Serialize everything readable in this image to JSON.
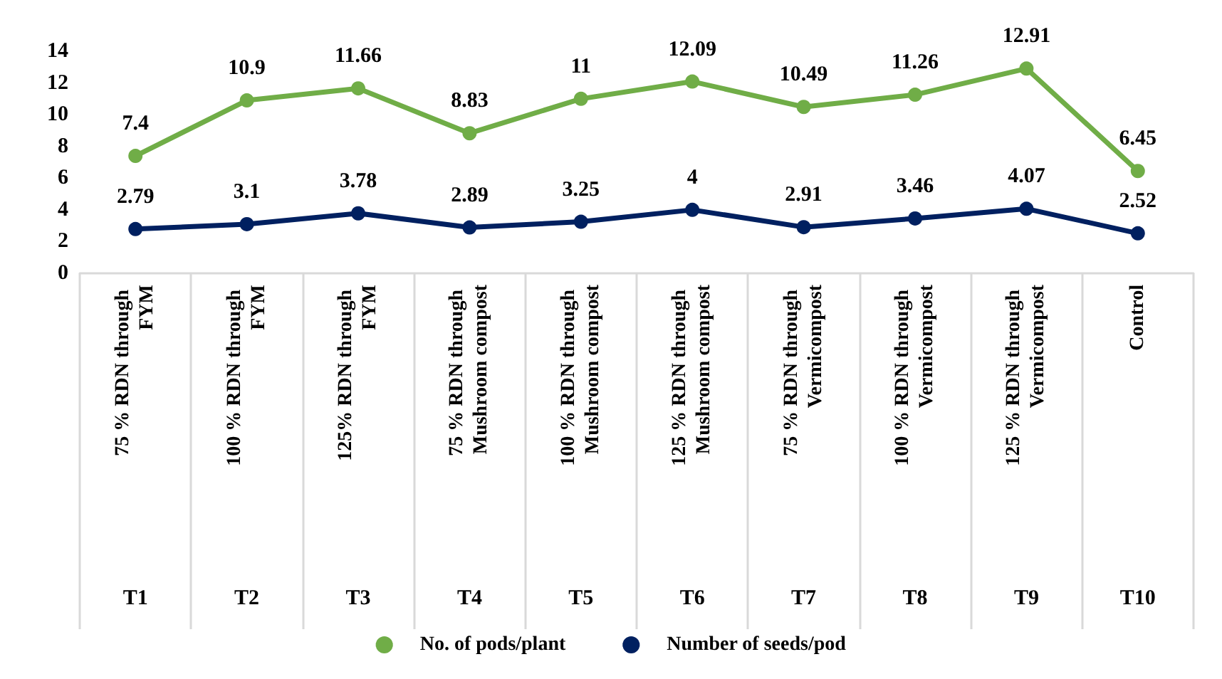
{
  "chart_data": {
    "type": "line",
    "categories": [
      "75 % RDN through FYM",
      "100 % RDN through FYM",
      "125% RDN through FYM",
      "75 % RDN through Mushroom compost",
      "100 % RDN through Mushroom compost",
      "125 % RDN through Mushroom compost",
      "75 % RDN through Vermicompost",
      "100 % RDN through Vermicompost",
      "125 % RDN through Vermicompost",
      "Control"
    ],
    "annotations": [
      "T1",
      "T2",
      "T3",
      "T4",
      "T5",
      "T6",
      "T7",
      "T8",
      "T9",
      "T10"
    ],
    "series": [
      {
        "name": "No. of pods/plant",
        "color": "#70ad47",
        "values": [
          7.4,
          10.9,
          11.66,
          8.83,
          11,
          12.09,
          10.49,
          11.26,
          12.91,
          6.45
        ]
      },
      {
        "name": "Number of seeds/pod",
        "color": "#002060",
        "values": [
          2.79,
          3.1,
          3.78,
          2.89,
          3.25,
          4,
          2.91,
          3.46,
          4.07,
          2.52
        ]
      }
    ],
    "ylim": [
      0,
      14
    ],
    "yticks": [
      0,
      2,
      4,
      6,
      8,
      10,
      12,
      14
    ],
    "data_labels": true,
    "marker": "circle",
    "line_style": "solid",
    "grid": false,
    "legend": "bottom"
  }
}
